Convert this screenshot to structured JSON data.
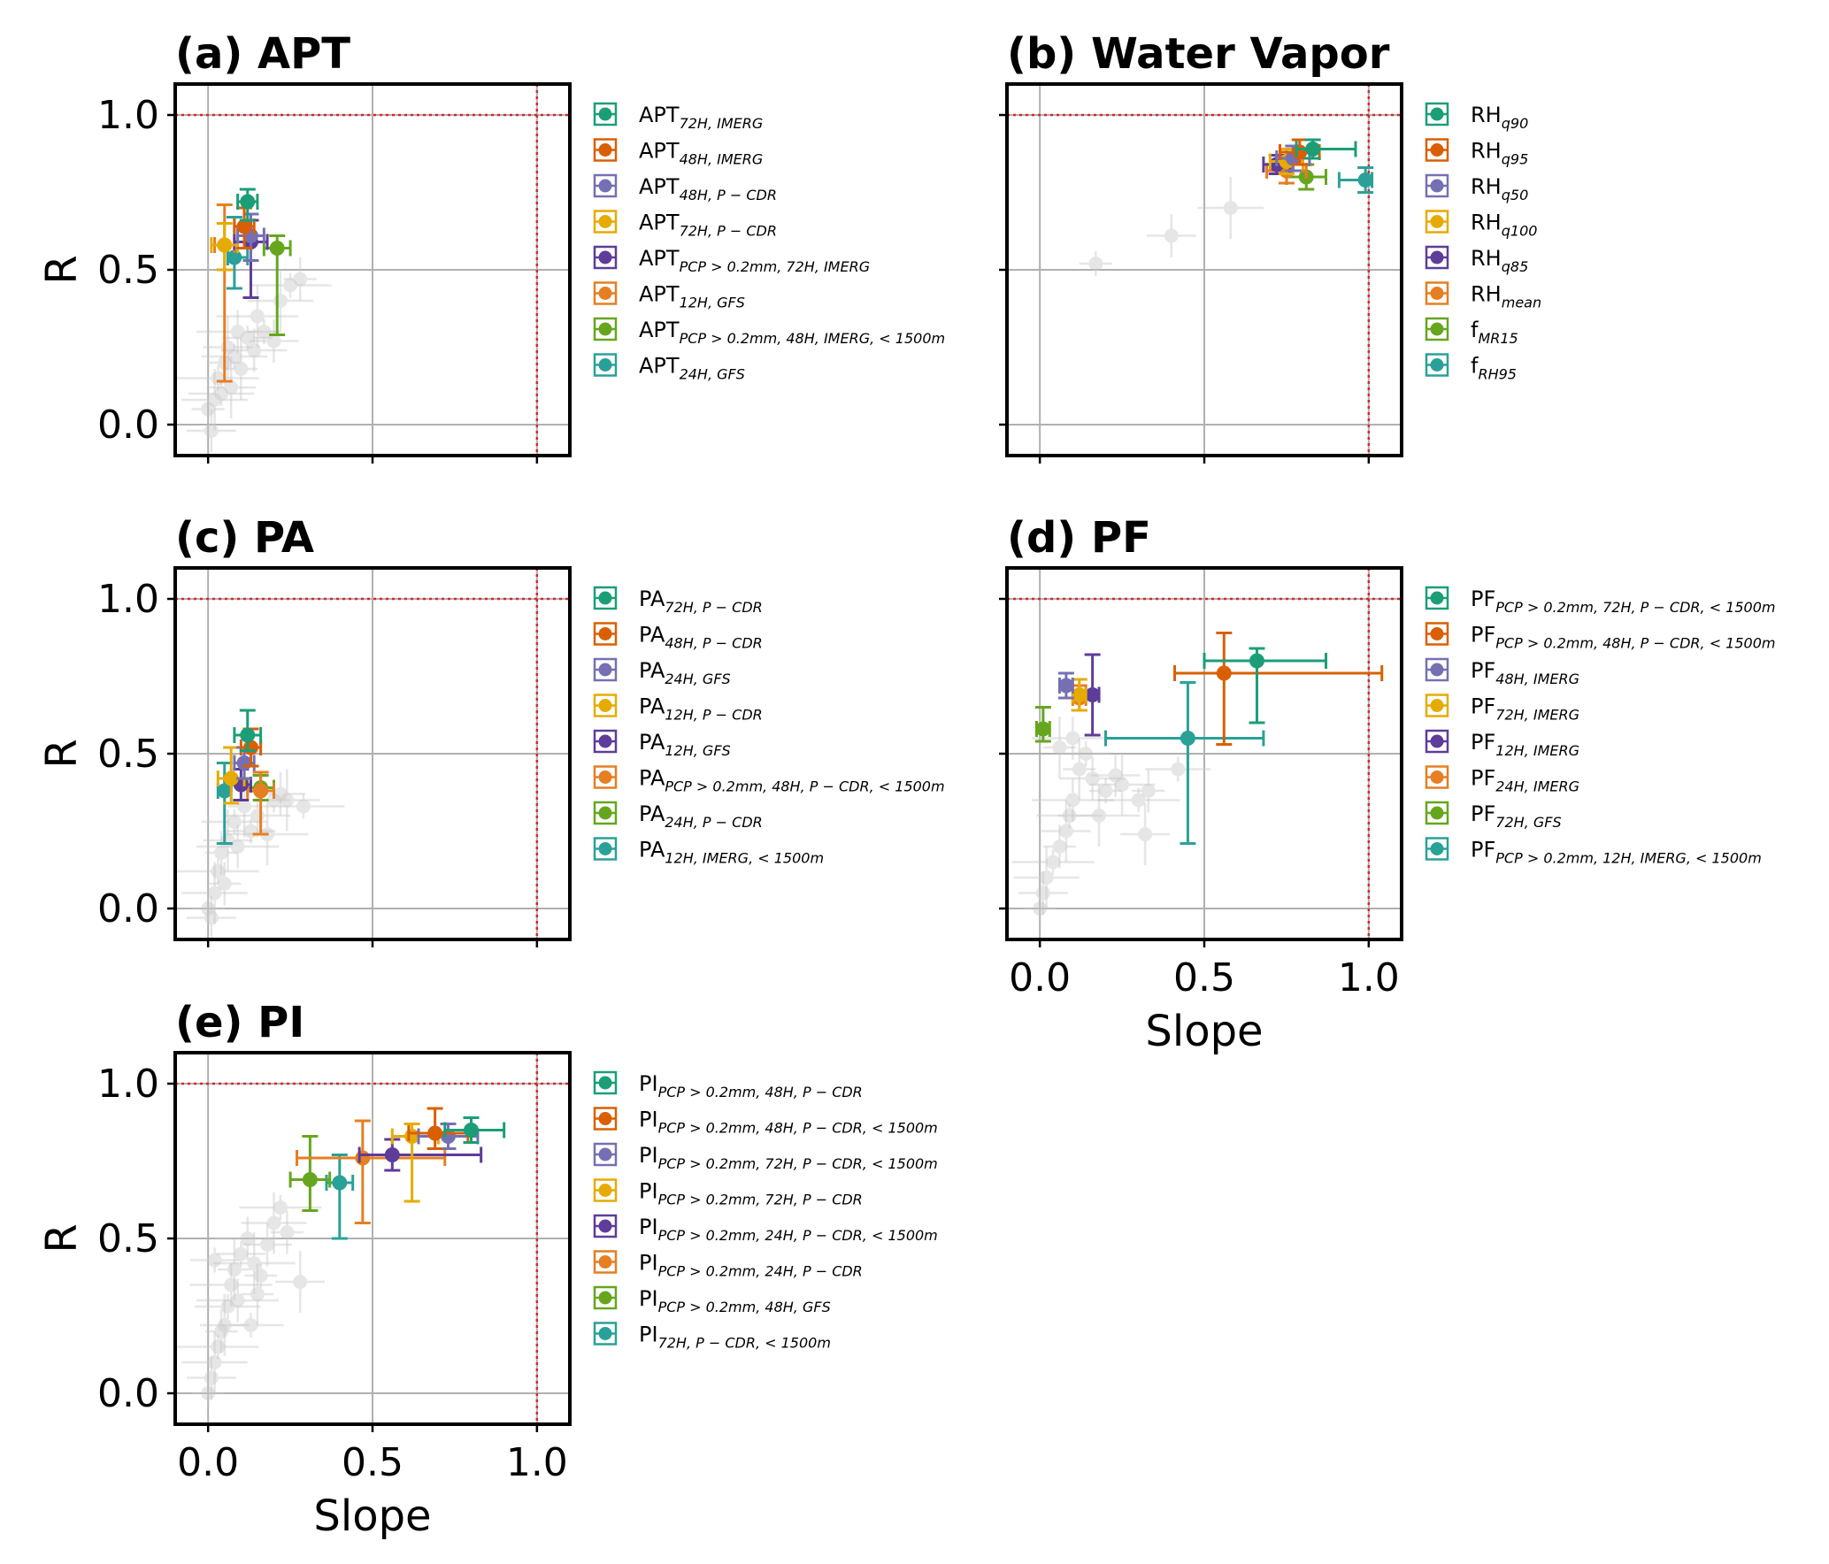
{
  "colors": [
    "#1b9e77",
    "#d95f02",
    "#7570b3",
    "#e6ab02",
    "#5e3c99",
    "#e67e22",
    "#66a61e",
    "#2aa198"
  ],
  "background_color": "#c8c8c8",
  "chart_data": [
    {
      "id": "a",
      "type": "scatter",
      "title": "(a) APT",
      "xlabel": "",
      "ylabel": "R",
      "xlim": [
        -0.1,
        1.1
      ],
      "ylim": [
        -0.1,
        1.1
      ],
      "xticks": [
        0.0,
        0.5,
        1.0
      ],
      "yticks": [
        0.0,
        0.5,
        1.0
      ],
      "xtick_labels": [
        "",
        "",
        ""
      ],
      "ytick_labels": [
        "0.0",
        "0.5",
        "1.0"
      ],
      "reference_lines": {
        "x": 1.0,
        "y": 1.0
      },
      "legend_position": "outside-right",
      "series": [
        {
          "name": "APT",
          "sub": "72H, IMERG",
          "x": 0.12,
          "y": 0.72,
          "xerr": [
            0.03,
            0.03
          ],
          "yerr": [
            0.06,
            0.04
          ]
        },
        {
          "name": "APT",
          "sub": "48H, IMERG",
          "x": 0.11,
          "y": 0.64,
          "xerr": [
            0.03,
            0.03
          ],
          "yerr": [
            0.07,
            0.06
          ]
        },
        {
          "name": "APT",
          "sub": "48H, P − CDR",
          "x": 0.13,
          "y": 0.61,
          "xerr": [
            0.04,
            0.04
          ],
          "yerr": [
            0.08,
            0.07
          ]
        },
        {
          "name": "APT",
          "sub": "72H, P − CDR",
          "x": 0.05,
          "y": 0.58,
          "xerr": [
            0.04,
            0.04
          ],
          "yerr": [
            0.08,
            0.07
          ]
        },
        {
          "name": "APT",
          "sub": "PCP > 0.2mm, 72H, IMERG",
          "x": 0.13,
          "y": 0.59,
          "xerr": [
            0.05,
            0.05
          ],
          "yerr": [
            0.18,
            0.07
          ]
        },
        {
          "name": "APT",
          "sub": "12H, GFS",
          "x": 0.05,
          "y": 0.58,
          "xerr": [
            0.03,
            0.03
          ],
          "yerr": [
            0.44,
            0.13
          ]
        },
        {
          "name": "APT",
          "sub": "PCP > 0.2mm, 48H, IMERG, < 1500m",
          "x": 0.21,
          "y": 0.57,
          "xerr": [
            0.04,
            0.04
          ],
          "yerr": [
            0.28,
            0.04
          ]
        },
        {
          "name": "APT",
          "sub": "24H, GFS",
          "x": 0.08,
          "y": 0.54,
          "xerr": [
            0.02,
            0.04
          ],
          "yerr": [
            0.1,
            0.13
          ]
        }
      ],
      "background_points": [
        [
          0.0,
          0.05
        ],
        [
          0.01,
          -0.02
        ],
        [
          0.02,
          0.08
        ],
        [
          0.03,
          0.15
        ],
        [
          0.05,
          0.2
        ],
        [
          0.06,
          0.25
        ],
        [
          0.08,
          0.22
        ],
        [
          0.09,
          0.3
        ],
        [
          0.1,
          0.18
        ],
        [
          0.12,
          0.28
        ],
        [
          0.14,
          0.24
        ],
        [
          0.15,
          0.35
        ],
        [
          0.17,
          0.3
        ],
        [
          0.2,
          0.27
        ],
        [
          0.22,
          0.4
        ],
        [
          0.25,
          0.45
        ],
        [
          0.28,
          0.47
        ],
        [
          0.07,
          0.12
        ],
        [
          0.04,
          0.1
        ]
      ]
    },
    {
      "id": "b",
      "type": "scatter",
      "title": "(b) Water Vapor",
      "xlabel": "",
      "ylabel": "",
      "xlim": [
        -0.1,
        1.1
      ],
      "ylim": [
        -0.1,
        1.1
      ],
      "xticks": [
        0.0,
        0.5,
        1.0
      ],
      "yticks": [
        0.0,
        0.5,
        1.0
      ],
      "xtick_labels": [
        "",
        "",
        ""
      ],
      "ytick_labels": [
        "",
        "",
        ""
      ],
      "reference_lines": {
        "x": 1.0,
        "y": 1.0
      },
      "legend_position": "outside-right",
      "series": [
        {
          "name": "RH",
          "sub": "q90",
          "x": 0.83,
          "y": 0.89,
          "xerr": [
            0.05,
            0.13
          ],
          "yerr": [
            0.03,
            0.03
          ]
        },
        {
          "name": "RH",
          "sub": "q95",
          "x": 0.79,
          "y": 0.88,
          "xerr": [
            0.06,
            0.06
          ],
          "yerr": [
            0.04,
            0.04
          ]
        },
        {
          "name": "RH",
          "sub": "q50",
          "x": 0.77,
          "y": 0.86,
          "xerr": [
            0.05,
            0.05
          ],
          "yerr": [
            0.04,
            0.04
          ]
        },
        {
          "name": "RH",
          "sub": "q100",
          "x": 0.75,
          "y": 0.85,
          "xerr": [
            0.05,
            0.05
          ],
          "yerr": [
            0.04,
            0.04
          ]
        },
        {
          "name": "RH",
          "sub": "q85",
          "x": 0.72,
          "y": 0.84,
          "xerr": [
            0.04,
            0.04
          ],
          "yerr": [
            0.03,
            0.03
          ]
        },
        {
          "name": "RH",
          "sub": "mean",
          "x": 0.75,
          "y": 0.82,
          "xerr": [
            0.06,
            0.06
          ],
          "yerr": [
            0.04,
            0.04
          ]
        },
        {
          "name": "f",
          "sub": "MR15",
          "x": 0.81,
          "y": 0.8,
          "xerr": [
            0.06,
            0.06
          ],
          "yerr": [
            0.04,
            0.04
          ]
        },
        {
          "name": "f",
          "sub": "RH95",
          "x": 0.99,
          "y": 0.79,
          "xerr": [
            0.08,
            0.02
          ],
          "yerr": [
            0.04,
            0.04
          ]
        }
      ],
      "background_points": [
        [
          0.17,
          0.52
        ],
        [
          0.4,
          0.61
        ],
        [
          0.58,
          0.7
        ]
      ]
    },
    {
      "id": "c",
      "type": "scatter",
      "title": "(c) PA",
      "xlabel": "",
      "ylabel": "R",
      "xlim": [
        -0.1,
        1.1
      ],
      "ylim": [
        -0.1,
        1.1
      ],
      "xticks": [
        0.0,
        0.5,
        1.0
      ],
      "yticks": [
        0.0,
        0.5,
        1.0
      ],
      "xtick_labels": [
        "",
        "",
        ""
      ],
      "ytick_labels": [
        "0.0",
        "0.5",
        "1.0"
      ],
      "reference_lines": {
        "x": 1.0,
        "y": 1.0
      },
      "legend_position": "outside-right",
      "series": [
        {
          "name": "PA",
          "sub": "72H, P − CDR",
          "x": 0.12,
          "y": 0.56,
          "xerr": [
            0.04,
            0.04
          ],
          "yerr": [
            0.05,
            0.08
          ]
        },
        {
          "name": "PA",
          "sub": "48H, P − CDR",
          "x": 0.13,
          "y": 0.52,
          "xerr": [
            0.03,
            0.03
          ],
          "yerr": [
            0.06,
            0.06
          ]
        },
        {
          "name": "PA",
          "sub": "24H, GFS",
          "x": 0.11,
          "y": 0.47,
          "xerr": [
            0.03,
            0.03
          ],
          "yerr": [
            0.05,
            0.05
          ]
        },
        {
          "name": "PA",
          "sub": "12H, P − CDR",
          "x": 0.07,
          "y": 0.42,
          "xerr": [
            0.04,
            0.04
          ],
          "yerr": [
            0.08,
            0.1
          ]
        },
        {
          "name": "PA",
          "sub": "12H, GFS",
          "x": 0.1,
          "y": 0.4,
          "xerr": [
            0.03,
            0.03
          ],
          "yerr": [
            0.05,
            0.05
          ]
        },
        {
          "name": "PA",
          "sub": "PCP > 0.2mm, 48H, P − CDR, < 1500m",
          "x": 0.16,
          "y": 0.38,
          "xerr": [
            0.04,
            0.04
          ],
          "yerr": [
            0.14,
            0.06
          ]
        },
        {
          "name": "PA",
          "sub": "24H, P − CDR",
          "x": 0.16,
          "y": 0.39,
          "xerr": [
            0.04,
            0.04
          ],
          "yerr": [
            0.04,
            0.04
          ]
        },
        {
          "name": "PA",
          "sub": "12H, IMERG, < 1500m",
          "x": 0.05,
          "y": 0.38,
          "xerr": [
            0.02,
            0.02
          ],
          "yerr": [
            0.17,
            0.09
          ]
        }
      ],
      "background_points": [
        [
          0.0,
          0.0
        ],
        [
          0.01,
          -0.03
        ],
        [
          0.02,
          0.05
        ],
        [
          0.03,
          0.12
        ],
        [
          0.04,
          0.18
        ],
        [
          0.06,
          0.22
        ],
        [
          0.08,
          0.28
        ],
        [
          0.09,
          0.2
        ],
        [
          0.11,
          0.33
        ],
        [
          0.13,
          0.25
        ],
        [
          0.15,
          0.3
        ],
        [
          0.18,
          0.24
        ],
        [
          0.2,
          0.35
        ],
        [
          0.22,
          0.37
        ],
        [
          0.24,
          0.35
        ],
        [
          0.29,
          0.33
        ],
        [
          0.05,
          0.08
        ]
      ]
    },
    {
      "id": "d",
      "type": "scatter",
      "title": "(d) PF",
      "xlabel": "Slope",
      "ylabel": "",
      "xlim": [
        -0.1,
        1.1
      ],
      "ylim": [
        -0.1,
        1.1
      ],
      "xticks": [
        0.0,
        0.5,
        1.0
      ],
      "yticks": [
        0.0,
        0.5,
        1.0
      ],
      "xtick_labels": [
        "0.0",
        "0.5",
        "1.0"
      ],
      "ytick_labels": [
        "",
        "",
        ""
      ],
      "reference_lines": {
        "x": 1.0,
        "y": 1.0
      },
      "legend_position": "outside-right",
      "series": [
        {
          "name": "PF",
          "sub": "PCP > 0.2mm, 72H, P − CDR, < 1500m",
          "x": 0.66,
          "y": 0.8,
          "xerr": [
            0.16,
            0.21
          ],
          "yerr": [
            0.2,
            0.04
          ]
        },
        {
          "name": "PF",
          "sub": "PCP > 0.2mm, 48H, P − CDR, < 1500m",
          "x": 0.56,
          "y": 0.76,
          "xerr": [
            0.15,
            0.48
          ],
          "yerr": [
            0.23,
            0.13
          ]
        },
        {
          "name": "PF",
          "sub": "48H, IMERG",
          "x": 0.08,
          "y": 0.72,
          "xerr": [
            0.02,
            0.02
          ],
          "yerr": [
            0.04,
            0.04
          ]
        },
        {
          "name": "PF",
          "sub": "72H, IMERG",
          "x": 0.12,
          "y": 0.69,
          "xerr": [
            0.02,
            0.02
          ],
          "yerr": [
            0.05,
            0.05
          ]
        },
        {
          "name": "PF",
          "sub": "12H, IMERG",
          "x": 0.16,
          "y": 0.69,
          "xerr": [
            0.02,
            0.02
          ],
          "yerr": [
            0.13,
            0.13
          ]
        },
        {
          "name": "PF",
          "sub": "24H, IMERG",
          "x": 0.12,
          "y": 0.68,
          "xerr": [
            0.02,
            0.02
          ],
          "yerr": [
            0.04,
            0.04
          ]
        },
        {
          "name": "PF",
          "sub": "72H, GFS",
          "x": 0.01,
          "y": 0.58,
          "xerr": [
            0.02,
            0.02
          ],
          "yerr": [
            0.04,
            0.07
          ]
        },
        {
          "name": "PF",
          "sub": "PCP > 0.2mm, 12H, IMERG, < 1500m",
          "x": 0.45,
          "y": 0.55,
          "xerr": [
            0.25,
            0.23
          ],
          "yerr": [
            0.34,
            0.18
          ]
        }
      ],
      "background_points": [
        [
          0.0,
          0.0
        ],
        [
          0.01,
          0.05
        ],
        [
          0.02,
          0.1
        ],
        [
          0.04,
          0.15
        ],
        [
          0.06,
          0.2
        ],
        [
          0.08,
          0.25
        ],
        [
          0.09,
          0.3
        ],
        [
          0.1,
          0.35
        ],
        [
          0.12,
          0.45
        ],
        [
          0.14,
          0.5
        ],
        [
          0.16,
          0.42
        ],
        [
          0.18,
          0.3
        ],
        [
          0.2,
          0.38
        ],
        [
          0.23,
          0.43
        ],
        [
          0.25,
          0.4
        ],
        [
          0.3,
          0.35
        ],
        [
          0.33,
          0.38
        ],
        [
          0.32,
          0.24
        ],
        [
          0.42,
          0.45
        ],
        [
          0.1,
          0.55
        ],
        [
          0.06,
          0.52
        ]
      ]
    },
    {
      "id": "e",
      "type": "scatter",
      "title": "(e) PI",
      "xlabel": "Slope",
      "ylabel": "R",
      "xlim": [
        -0.1,
        1.1
      ],
      "ylim": [
        -0.1,
        1.1
      ],
      "xticks": [
        0.0,
        0.5,
        1.0
      ],
      "yticks": [
        0.0,
        0.5,
        1.0
      ],
      "xtick_labels": [
        "0.0",
        "0.5",
        "1.0"
      ],
      "ytick_labels": [
        "0.0",
        "0.5",
        "1.0"
      ],
      "reference_lines": {
        "x": 1.0,
        "y": 1.0
      },
      "legend_position": "outside-right",
      "series": [
        {
          "name": "PI",
          "sub": "PCP > 0.2mm, 48H, P − CDR",
          "x": 0.8,
          "y": 0.85,
          "xerr": [
            0.08,
            0.1
          ],
          "yerr": [
            0.04,
            0.04
          ]
        },
        {
          "name": "PI",
          "sub": "PCP > 0.2mm, 48H, P − CDR, < 1500m",
          "x": 0.69,
          "y": 0.84,
          "xerr": [
            0.08,
            0.1
          ],
          "yerr": [
            0.05,
            0.08
          ]
        },
        {
          "name": "PI",
          "sub": "PCP > 0.2mm, 72H, P − CDR, < 1500m",
          "x": 0.73,
          "y": 0.83,
          "xerr": [
            0.09,
            0.09
          ],
          "yerr": [
            0.04,
            0.04
          ]
        },
        {
          "name": "PI",
          "sub": "PCP > 0.2mm, 72H, P − CDR",
          "x": 0.62,
          "y": 0.83,
          "xerr": [
            0.06,
            0.08
          ],
          "yerr": [
            0.21,
            0.04
          ]
        },
        {
          "name": "PI",
          "sub": "PCP > 0.2mm, 24H, P − CDR, < 1500m",
          "x": 0.56,
          "y": 0.77,
          "xerr": [
            0.1,
            0.27
          ],
          "yerr": [
            0.05,
            0.05
          ]
        },
        {
          "name": "PI",
          "sub": "PCP > 0.2mm, 24H, P − CDR",
          "x": 0.47,
          "y": 0.76,
          "xerr": [
            0.2,
            0.25
          ],
          "yerr": [
            0.21,
            0.12
          ]
        },
        {
          "name": "PI",
          "sub": "PCP > 0.2mm, 48H, GFS",
          "x": 0.31,
          "y": 0.69,
          "xerr": [
            0.06,
            0.06
          ],
          "yerr": [
            0.1,
            0.14
          ]
        },
        {
          "name": "PI",
          "sub": "72H, P − CDR, < 1500m",
          "x": 0.4,
          "y": 0.68,
          "xerr": [
            0.04,
            0.04
          ],
          "yerr": [
            0.18,
            0.09
          ]
        }
      ],
      "background_points": [
        [
          0.0,
          0.0
        ],
        [
          0.01,
          0.05
        ],
        [
          0.02,
          0.1
        ],
        [
          0.03,
          0.15
        ],
        [
          0.04,
          0.2
        ],
        [
          0.05,
          0.22
        ],
        [
          0.06,
          0.28
        ],
        [
          0.07,
          0.35
        ],
        [
          0.08,
          0.4
        ],
        [
          0.1,
          0.45
        ],
        [
          0.12,
          0.5
        ],
        [
          0.14,
          0.42
        ],
        [
          0.16,
          0.38
        ],
        [
          0.18,
          0.48
        ],
        [
          0.2,
          0.55
        ],
        [
          0.22,
          0.6
        ],
        [
          0.24,
          0.52
        ],
        [
          0.28,
          0.36
        ],
        [
          0.13,
          0.22
        ],
        [
          0.09,
          0.3
        ],
        [
          0.15,
          0.32
        ],
        [
          0.02,
          0.43
        ]
      ]
    }
  ]
}
